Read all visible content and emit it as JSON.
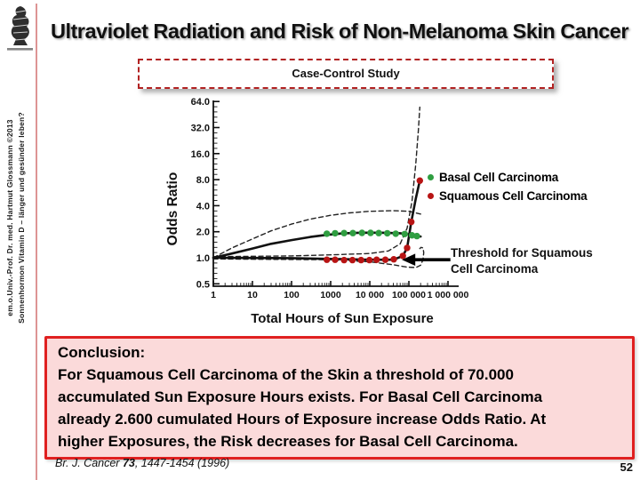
{
  "slide": {
    "title": "Ultraviolet Radiation and Risk of Non-Melanoma Skin Cancer",
    "page_number": "52",
    "sidebar_line1": "em.o.Univ.-Prof. Dr. med. Hartmut Glossmann ©2013",
    "sidebar_line2": "Sonnenhormon Vitamin D – länger und gesünder leben?",
    "study_type_label": "Case-Control Study",
    "citation": {
      "journal": "Br. J. Cancer ",
      "volume": "73",
      "rest": ", 1447-1454 (1996)"
    }
  },
  "annotation": {
    "threshold_line1": "Threshold for Squamous",
    "threshold_line2": "Cell Carcinoma"
  },
  "conclusion": {
    "heading": "Conclusion:",
    "lines": [
      "For Squamous Cell Carcinoma of the Skin a threshold of 70.000",
      "accumulated Sun Exposure Hours exists. For Basal Cell Carcinoma",
      "already 2.600 cumulated Hours of Exposure increase Odds Ratio. At",
      "higher Exposures, the Risk decreases for Basal Cell Carcinoma."
    ]
  },
  "colors": {
    "accent_red": "#c00000",
    "conclusion_border": "#e02020",
    "conclusion_fill": "#fbdada",
    "basal_green": "#2f9e41",
    "squamous_red": "#b81414",
    "side_rule_pink": "#dd9595"
  },
  "chart_data": {
    "type": "line",
    "title": "",
    "xlabel": "Total Hours of Sun Exposure",
    "ylabel": "Odds Ratio",
    "x_scale": "log10",
    "y_scale": "log2",
    "xlim": [
      1,
      1500000
    ],
    "ylim": [
      0.5,
      64
    ],
    "grid": false,
    "legend_position": "right",
    "x_ticks": [
      1,
      10,
      100,
      1000,
      10000,
      100000,
      1000000
    ],
    "x_tick_labels": [
      "1",
      "10",
      "100",
      "1000",
      "10 000",
      "100 000",
      "1 000 000"
    ],
    "y_ticks": [
      64,
      32,
      16,
      8,
      4,
      2,
      1,
      0.5
    ],
    "y_tick_labels": [
      "64.0",
      "32.0",
      "16.0",
      "8.0",
      "4.0",
      "2.0",
      "1.0",
      "0.5"
    ],
    "series": [
      {
        "name": "basal-fit",
        "label": "Basal Cell Carcinoma fitted odds ratio",
        "style": "solid",
        "color": "#111111",
        "width": 2.6,
        "points": [
          [
            1,
            1.0
          ],
          [
            3,
            1.12
          ],
          [
            10,
            1.28
          ],
          [
            30,
            1.45
          ],
          [
            100,
            1.6
          ],
          [
            300,
            1.74
          ],
          [
            800,
            1.84
          ],
          [
            2000,
            1.91
          ],
          [
            6000,
            1.95
          ],
          [
            20000,
            1.95
          ],
          [
            60000,
            1.92
          ],
          [
            120000,
            1.85
          ],
          [
            200000,
            1.76
          ]
        ]
      },
      {
        "name": "squamous-fit",
        "label": "Squamous Cell Carcinoma fitted odds ratio",
        "style": "solid",
        "color": "#111111",
        "width": 2.6,
        "points": [
          [
            1,
            1.0
          ],
          [
            100,
            0.99
          ],
          [
            1000,
            0.97
          ],
          [
            10000,
            0.95
          ],
          [
            40000,
            0.95
          ],
          [
            70000,
            1.05
          ],
          [
            90000,
            1.3
          ],
          [
            115000,
            2.6
          ],
          [
            150000,
            4.8
          ],
          [
            190000,
            7.8
          ]
        ]
      },
      {
        "name": "basal-ci-upper",
        "label": "Basal 95% CI upper",
        "style": "dashed",
        "color": "#222222",
        "width": 1.4,
        "points": [
          [
            1,
            1.0
          ],
          [
            3,
            1.3
          ],
          [
            10,
            1.65
          ],
          [
            30,
            2.05
          ],
          [
            100,
            2.45
          ],
          [
            300,
            2.8
          ],
          [
            1000,
            3.1
          ],
          [
            3000,
            3.3
          ],
          [
            10000,
            3.45
          ],
          [
            40000,
            3.5
          ],
          [
            100000,
            3.45
          ],
          [
            200000,
            3.2
          ]
        ]
      },
      {
        "name": "squamous-ci-upper",
        "label": "Squamous 95% CI upper",
        "style": "dashed",
        "color": "#222222",
        "width": 1.4,
        "points": [
          [
            1,
            1.03
          ],
          [
            100,
            1.05
          ],
          [
            1000,
            1.08
          ],
          [
            10000,
            1.12
          ],
          [
            30000,
            1.2
          ],
          [
            60000,
            1.45
          ],
          [
            90000,
            2.2
          ],
          [
            120000,
            4.5
          ],
          [
            150000,
            12
          ],
          [
            175000,
            30
          ],
          [
            190000,
            55
          ]
        ]
      },
      {
        "name": "squamous-ci-lower",
        "label": "Squamous 95% CI lower",
        "style": "dashed",
        "color": "#222222",
        "width": 1.4,
        "points": [
          [
            1,
            0.97
          ],
          [
            1000,
            0.95
          ],
          [
            10000,
            0.9
          ],
          [
            40000,
            0.83
          ],
          [
            90000,
            0.78
          ],
          [
            150000,
            0.77
          ],
          [
            200000,
            0.82
          ],
          [
            230000,
            0.95
          ],
          [
            240000,
            1.15
          ],
          [
            230000,
            1.3
          ],
          [
            205000,
            1.32
          ],
          [
            190000,
            1.28
          ]
        ]
      }
    ],
    "dot_series": [
      {
        "name": "Basal Cell Carcinoma",
        "color": "#2f9e41",
        "points": [
          [
            800,
            1.9
          ],
          [
            1300,
            1.92
          ],
          [
            2200,
            1.93
          ],
          [
            3700,
            1.93
          ],
          [
            6300,
            1.94
          ],
          [
            10500,
            1.94
          ],
          [
            17000,
            1.93
          ],
          [
            28000,
            1.92
          ],
          [
            46000,
            1.9
          ],
          [
            78000,
            1.88
          ],
          [
            120000,
            1.82
          ],
          [
            160000,
            1.78
          ]
        ]
      },
      {
        "name": "Squamous Cell Carcinoma",
        "color": "#b81414",
        "points": [
          [
            800,
            0.95
          ],
          [
            1300,
            0.95
          ],
          [
            2200,
            0.94
          ],
          [
            3600,
            0.94
          ],
          [
            6000,
            0.94
          ],
          [
            9800,
            0.94
          ],
          [
            15000,
            0.95
          ],
          [
            25000,
            0.95
          ],
          [
            41000,
            0.96
          ],
          [
            70000,
            1.05
          ],
          [
            90000,
            1.3
          ],
          [
            115000,
            2.6
          ],
          [
            190000,
            7.8
          ]
        ]
      }
    ],
    "threshold_arrow": {
      "x": 70000,
      "y": 0.95,
      "tail_x": 1150000
    }
  }
}
